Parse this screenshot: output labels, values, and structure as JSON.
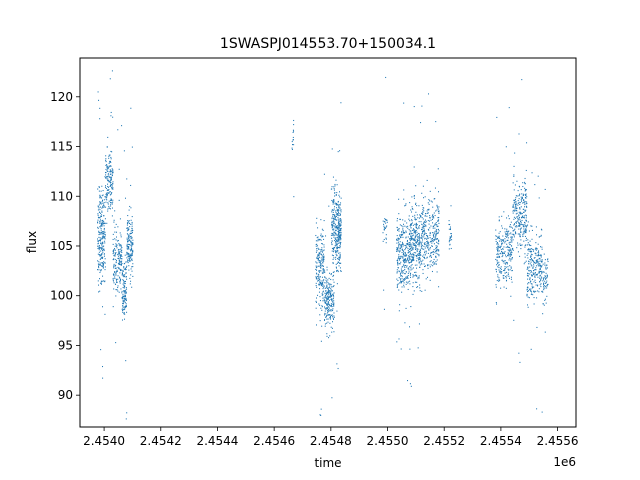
{
  "chart_data": {
    "type": "scatter",
    "title": "1SWASPJ014553.70+150034.1",
    "xlabel": "time",
    "ylabel": "flux",
    "x_offset_label": "1e6",
    "x_scale": 1000000,
    "xlim": [
      2453915,
      2455665
    ],
    "ylim": [
      86.8,
      123.9
    ],
    "x_ticks": [
      2454000,
      2454200,
      2454400,
      2454600,
      2454800,
      2455000,
      2455200,
      2455400,
      2455600
    ],
    "x_tick_labels": [
      "2.4540",
      "2.4542",
      "2.4544",
      "2.4546",
      "2.4548",
      "2.4550",
      "2.4552",
      "2.4554",
      "2.4556"
    ],
    "y_ticks": [
      90,
      95,
      100,
      105,
      110,
      115,
      120
    ],
    "y_tick_labels": [
      "90",
      "95",
      "100",
      "105",
      "110",
      "115",
      "120"
    ],
    "grid": false,
    "legend": "none",
    "marker_color": "#1f77b4",
    "segments": [
      {
        "x_start": 2453975,
        "x_end": 2454003,
        "y_center": 106.0,
        "y_spread": 4.5,
        "n": 260
      },
      {
        "x_start": 2454003,
        "x_end": 2454030,
        "y_center": 112.0,
        "y_spread": 3.0,
        "n": 160
      },
      {
        "x_start": 2454030,
        "x_end": 2454062,
        "y_center": 103.5,
        "y_spread": 3.0,
        "n": 180
      },
      {
        "x_start": 2454062,
        "x_end": 2454078,
        "y_center": 100.5,
        "y_spread": 2.5,
        "n": 120
      },
      {
        "x_start": 2454078,
        "x_end": 2454100,
        "y_center": 105.0,
        "y_spread": 3.0,
        "n": 160
      },
      {
        "x_start": 2454660,
        "x_end": 2454668,
        "y_center": 116.0,
        "y_spread": 2.0,
        "n": 14
      },
      {
        "x_start": 2454745,
        "x_end": 2454775,
        "y_center": 103.0,
        "y_spread": 4.0,
        "n": 200
      },
      {
        "x_start": 2454775,
        "x_end": 2454810,
        "y_center": 99.5,
        "y_spread": 2.5,
        "n": 220
      },
      {
        "x_start": 2454800,
        "x_end": 2454815,
        "y_center": 107.5,
        "y_spread": 3.5,
        "n": 110
      },
      {
        "x_start": 2454815,
        "x_end": 2454835,
        "y_center": 106.5,
        "y_spread": 3.5,
        "n": 230
      },
      {
        "x_start": 2454982,
        "x_end": 2454998,
        "y_center": 107.0,
        "y_spread": 1.5,
        "n": 30
      },
      {
        "x_start": 2455030,
        "x_end": 2455075,
        "y_center": 104.5,
        "y_spread": 3.5,
        "n": 280
      },
      {
        "x_start": 2455075,
        "x_end": 2455115,
        "y_center": 105.0,
        "y_spread": 3.5,
        "n": 300
      },
      {
        "x_start": 2455115,
        "x_end": 2455180,
        "y_center": 106.0,
        "y_spread": 3.5,
        "n": 320
      },
      {
        "x_start": 2455215,
        "x_end": 2455225,
        "y_center": 106.0,
        "y_spread": 2.5,
        "n": 25
      },
      {
        "x_start": 2455380,
        "x_end": 2455440,
        "y_center": 104.5,
        "y_spread": 3.0,
        "n": 260
      },
      {
        "x_start": 2455440,
        "x_end": 2455490,
        "y_center": 108.0,
        "y_spread": 3.5,
        "n": 260
      },
      {
        "x_start": 2455490,
        "x_end": 2455545,
        "y_center": 103.0,
        "y_spread": 3.0,
        "n": 260
      },
      {
        "x_start": 2455545,
        "x_end": 2455565,
        "y_center": 102.0,
        "y_spread": 2.5,
        "n": 60
      }
    ]
  }
}
